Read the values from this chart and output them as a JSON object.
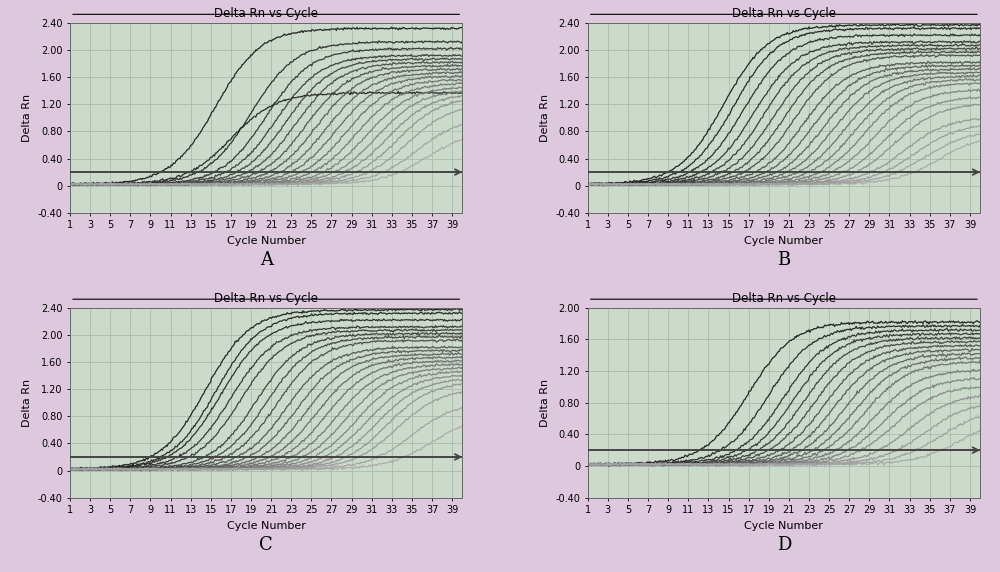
{
  "title": "Delta Rn vs Cycle",
  "xlabel": "Cycle Number",
  "ylabel": "Delta Rn",
  "xlim": [
    1,
    40
  ],
  "ylim_ABC": [
    -0.4,
    2.4
  ],
  "ylim_D": [
    -0.4,
    2.0
  ],
  "yticks_ABC": [
    -0.4,
    0,
    0.4,
    0.8,
    1.2,
    1.6,
    2.0,
    2.4
  ],
  "yticks_D": [
    -0.4,
    0,
    0.4,
    0.8,
    1.2,
    1.6,
    2.0
  ],
  "xticks": [
    1,
    3,
    5,
    7,
    9,
    11,
    13,
    15,
    17,
    19,
    21,
    23,
    25,
    27,
    29,
    31,
    33,
    35,
    37,
    39
  ],
  "threshold": 0.2,
  "bg_color": "#ddc8dd",
  "plot_bg": "#ccdacc",
  "grid_color": "#aabcaa",
  "panel_labels": [
    "A",
    "B",
    "C",
    "D"
  ],
  "shifts_A": [
    15.5,
    17.0,
    19.0,
    20.5,
    21.5,
    22.5,
    23.5,
    24.5,
    25.5,
    26.5,
    27.5,
    28.5,
    29.5,
    30.5,
    31.5,
    32.5,
    33.5,
    34.5,
    35.5,
    36.5
  ],
  "maxes_A": [
    2.3,
    1.35,
    2.1,
    2.0,
    1.9,
    1.85,
    1.8,
    1.75,
    1.7,
    1.65,
    1.6,
    1.55,
    1.5,
    1.45,
    1.4,
    1.35,
    1.3,
    1.2,
    1.0,
    0.8
  ],
  "shifts_B": [
    14.5,
    15.5,
    16.5,
    17.5,
    18.5,
    19.5,
    20.5,
    21.5,
    22.5,
    23.5,
    24.5,
    25.5,
    26.5,
    27.5,
    28.5,
    29.5,
    30.5,
    31.5,
    32.5,
    33.5,
    34.5,
    36.0
  ],
  "maxes_B": [
    2.35,
    2.3,
    2.2,
    2.1,
    2.05,
    2.0,
    1.95,
    1.9,
    1.8,
    1.75,
    1.7,
    1.65,
    1.6,
    1.55,
    1.5,
    1.4,
    1.3,
    1.2,
    1.0,
    0.9,
    0.8,
    0.75
  ],
  "shifts_C": [
    14.5,
    15.5,
    16.0,
    17.0,
    18.0,
    19.5,
    20.5,
    21.5,
    22.5,
    23.5,
    24.5,
    25.5,
    26.5,
    27.5,
    28.5,
    29.5,
    30.5,
    31.5,
    32.5,
    33.5,
    35.0,
    37.0
  ],
  "maxes_C": [
    2.35,
    2.3,
    2.2,
    2.1,
    2.05,
    2.0,
    1.95,
    1.9,
    1.8,
    1.75,
    1.7,
    1.65,
    1.6,
    1.55,
    1.5,
    1.45,
    1.4,
    1.35,
    1.3,
    1.2,
    1.0,
    0.8
  ],
  "shifts_D": [
    17.0,
    19.0,
    20.5,
    21.5,
    22.5,
    23.5,
    24.5,
    25.5,
    26.5,
    27.5,
    28.5,
    29.5,
    30.5,
    31.5,
    33.0,
    34.5,
    36.0,
    38.0
  ],
  "maxes_D": [
    1.8,
    1.75,
    1.7,
    1.65,
    1.6,
    1.55,
    1.5,
    1.45,
    1.4,
    1.35,
    1.3,
    1.2,
    1.1,
    1.0,
    0.9,
    0.8,
    0.7,
    0.6
  ]
}
